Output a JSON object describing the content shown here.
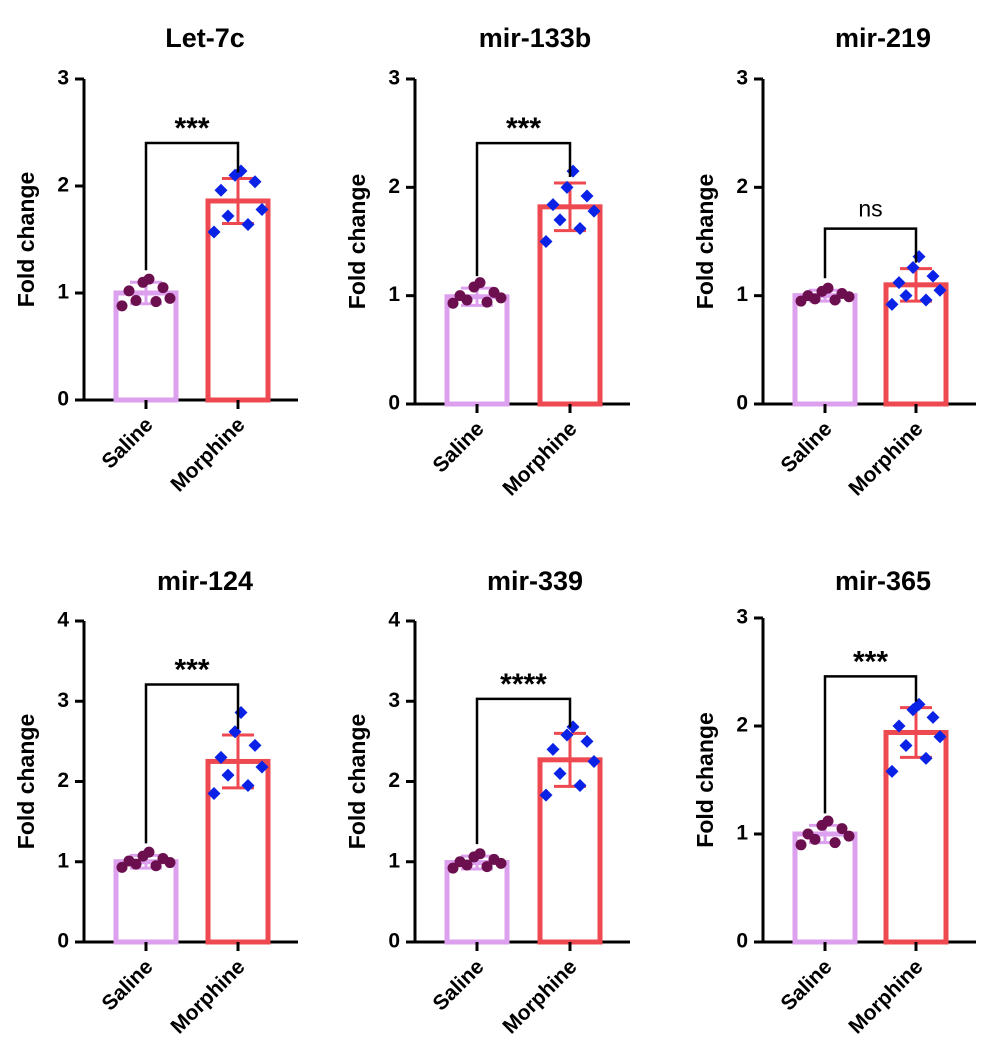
{
  "colors": {
    "saline_bar": "#dda0ee",
    "saline_points": "#6b0f4f",
    "morphine_bar": "#ee4850",
    "morphine_points": "#0a22e6",
    "axis": "#000000"
  },
  "chart_data": [
    {
      "type": "bar",
      "title": "Let-7c",
      "ylabel": "Fold change",
      "ylim": [
        0,
        3
      ],
      "yticks": [
        0,
        1,
        2,
        3
      ],
      "categories": [
        "Saline",
        "Morphine"
      ],
      "values": [
        1.0,
        1.86
      ],
      "error": [
        0.1,
        0.21
      ],
      "points": [
        [
          0.88,
          0.92,
          0.93,
          0.95,
          1.02,
          1.05,
          1.1,
          1.13
        ],
        [
          1.57,
          1.64,
          1.72,
          1.78,
          1.96,
          2.04,
          2.1,
          2.14
        ]
      ],
      "comparison": "***"
    },
    {
      "type": "bar",
      "title": "mir-133b",
      "ylabel": "Fold change",
      "ylim": [
        0,
        3
      ],
      "yticks": [
        0,
        1,
        2,
        3
      ],
      "categories": [
        "Saline",
        "Morphine"
      ],
      "values": [
        0.99,
        1.82
      ],
      "error": [
        0.08,
        0.22
      ],
      "points": [
        [
          0.93,
          0.94,
          0.96,
          0.98,
          1.0,
          1.03,
          1.08,
          1.12
        ],
        [
          1.5,
          1.62,
          1.7,
          1.78,
          1.84,
          1.92,
          2.0,
          2.15
        ]
      ],
      "comparison": "***"
    },
    {
      "type": "bar",
      "title": "mir-219",
      "ylabel": "Fold change",
      "ylim": [
        0,
        3
      ],
      "yticks": [
        0,
        1,
        2,
        3
      ],
      "categories": [
        "Saline",
        "Morphine"
      ],
      "values": [
        1.0,
        1.1
      ],
      "error": [
        0.05,
        0.15
      ],
      "points": [
        [
          0.95,
          0.96,
          0.97,
          0.99,
          1.0,
          1.02,
          1.04,
          1.07
        ],
        [
          0.92,
          0.96,
          1.0,
          1.05,
          1.12,
          1.18,
          1.26,
          1.36
        ]
      ],
      "comparison": "ns"
    },
    {
      "type": "bar",
      "title": "mir-124",
      "ylabel": "Fold change",
      "ylim": [
        0,
        4
      ],
      "yticks": [
        0,
        1,
        2,
        3,
        4
      ],
      "categories": [
        "Saline",
        "Morphine"
      ],
      "values": [
        1.0,
        2.25
      ],
      "error": [
        0.08,
        0.33
      ],
      "points": [
        [
          0.93,
          0.95,
          0.97,
          0.99,
          1.01,
          1.04,
          1.07,
          1.12
        ],
        [
          1.85,
          1.95,
          2.08,
          2.18,
          2.3,
          2.45,
          2.62,
          2.86
        ]
      ],
      "comparison": "***"
    },
    {
      "type": "bar",
      "title": "mir-339",
      "ylabel": "Fold change",
      "ylim": [
        0,
        4
      ],
      "yticks": [
        0,
        1,
        2,
        3,
        4
      ],
      "categories": [
        "Saline",
        "Morphine"
      ],
      "values": [
        0.99,
        2.27
      ],
      "error": [
        0.08,
        0.33
      ],
      "points": [
        [
          0.92,
          0.94,
          0.96,
          0.98,
          1.0,
          1.03,
          1.06,
          1.1
        ],
        [
          1.83,
          1.95,
          2.1,
          2.25,
          2.4,
          2.5,
          2.58,
          2.68
        ]
      ],
      "comparison": "****"
    },
    {
      "type": "bar",
      "title": "mir-365",
      "ylabel": "Fold change",
      "ylim": [
        0,
        3
      ],
      "yticks": [
        0,
        1,
        2,
        3
      ],
      "categories": [
        "Saline",
        "Morphine"
      ],
      "values": [
        1.0,
        1.94
      ],
      "error": [
        0.08,
        0.23
      ],
      "points": [
        [
          0.9,
          0.92,
          0.95,
          0.98,
          1.0,
          1.05,
          1.08,
          1.12
        ],
        [
          1.58,
          1.7,
          1.82,
          1.9,
          2.0,
          2.08,
          2.15,
          2.2
        ]
      ],
      "comparison": "***"
    }
  ]
}
